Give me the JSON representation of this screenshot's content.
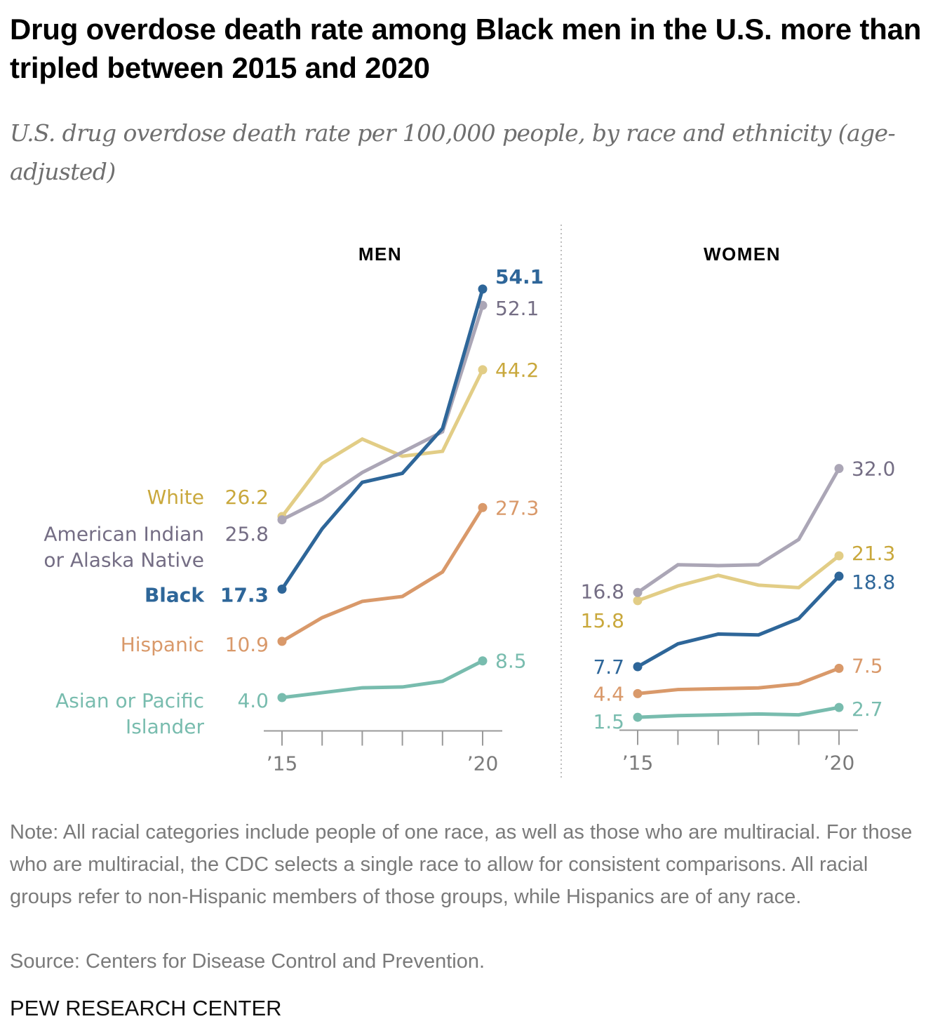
{
  "header": {
    "title": "Drug overdose death rate among Black men in the U.S. more than tripled between 2015 and 2020",
    "subtitle": "U.S. drug overdose death rate per 100,000 people, by race and ethnicity (age-adjusted)"
  },
  "footer": {
    "note": "Note: All racial categories include people of one race, as well as those who are multiracial. For those who are multiracial, the CDC selects a single race to allow for consistent comparisons. All racial groups refer to non-Hispanic members of those groups, while Hispanics are of any race.",
    "source": "Source: Centers for Disease Control and Prevention.",
    "brand": "PEW RESEARCH CENTER"
  },
  "colors": {
    "white": "#e2cd86",
    "white_text": "#c9a83c",
    "aian": "#aba6b6",
    "aian_text": "#746d84",
    "black": "#2e6699",
    "hispanic": "#d9996a",
    "asian": "#78bcae",
    "axis": "#9a9a9a",
    "divider": "#bdbdbd"
  },
  "chart_data": [
    {
      "type": "line",
      "panel": "MEN",
      "title": "MEN",
      "x": [
        2015,
        2016,
        2017,
        2018,
        2019,
        2020
      ],
      "x_tick_labels": [
        "’15",
        "",
        "",
        "",
        "",
        "’20"
      ],
      "ylim": [
        0,
        56
      ],
      "grid": false,
      "series": [
        {
          "key": "white",
          "name": "White",
          "values": [
            26.2,
            32.7,
            35.7,
            33.6,
            34.2,
            44.2
          ],
          "start_label": "26.2",
          "end_label": "44.2"
        },
        {
          "key": "aian",
          "name": "American Indian or Alaska Native",
          "name_lines": [
            "American Indian",
            "or Alaska Native"
          ],
          "values": [
            25.8,
            28.3,
            31.6,
            34.1,
            36.6,
            52.1
          ],
          "start_label": "25.8",
          "end_label": "52.1"
        },
        {
          "key": "black",
          "name": "Black",
          "values": [
            17.3,
            24.7,
            30.4,
            31.5,
            37.0,
            54.1
          ],
          "start_label": "17.3",
          "end_label": "54.1",
          "emphasis": true
        },
        {
          "key": "hispanic",
          "name": "Hispanic",
          "values": [
            10.9,
            13.8,
            15.8,
            16.4,
            19.4,
            27.3
          ],
          "start_label": "10.9",
          "end_label": "27.3"
        },
        {
          "key": "asian",
          "name": "Asian or Pacific Islander",
          "name_lines": [
            "Asian or Pacific",
            "Islander"
          ],
          "values": [
            4.0,
            4.6,
            5.2,
            5.3,
            6.0,
            8.5
          ],
          "start_label": "4.0",
          "end_label": "8.5"
        }
      ]
    },
    {
      "type": "line",
      "panel": "WOMEN",
      "title": "WOMEN",
      "x": [
        2015,
        2016,
        2017,
        2018,
        2019,
        2020
      ],
      "x_tick_labels": [
        "’15",
        "",
        "",
        "",
        "",
        "’20"
      ],
      "ylim": [
        0,
        56
      ],
      "grid": false,
      "series": [
        {
          "key": "white",
          "name": "White",
          "values": [
            15.8,
            17.6,
            18.9,
            17.7,
            17.4,
            21.3
          ],
          "start_label": "15.8",
          "end_label": "21.3"
        },
        {
          "key": "aian",
          "name": "American Indian or Alaska Native",
          "values": [
            16.8,
            20.2,
            20.1,
            20.2,
            23.3,
            32.0
          ],
          "start_label": "16.8",
          "end_label": "32.0"
        },
        {
          "key": "black",
          "name": "Black",
          "values": [
            7.7,
            10.5,
            11.7,
            11.6,
            13.6,
            18.8
          ],
          "start_label": "7.7",
          "end_label": "18.8"
        },
        {
          "key": "hispanic",
          "name": "Hispanic",
          "values": [
            4.4,
            4.9,
            5.0,
            5.1,
            5.6,
            7.5
          ],
          "start_label": "4.4",
          "end_label": "7.5"
        },
        {
          "key": "asian",
          "name": "Asian or Pacific Islander",
          "values": [
            1.5,
            1.7,
            1.8,
            1.9,
            1.8,
            2.7
          ],
          "start_label": "1.5",
          "end_label": "2.7"
        }
      ]
    }
  ]
}
